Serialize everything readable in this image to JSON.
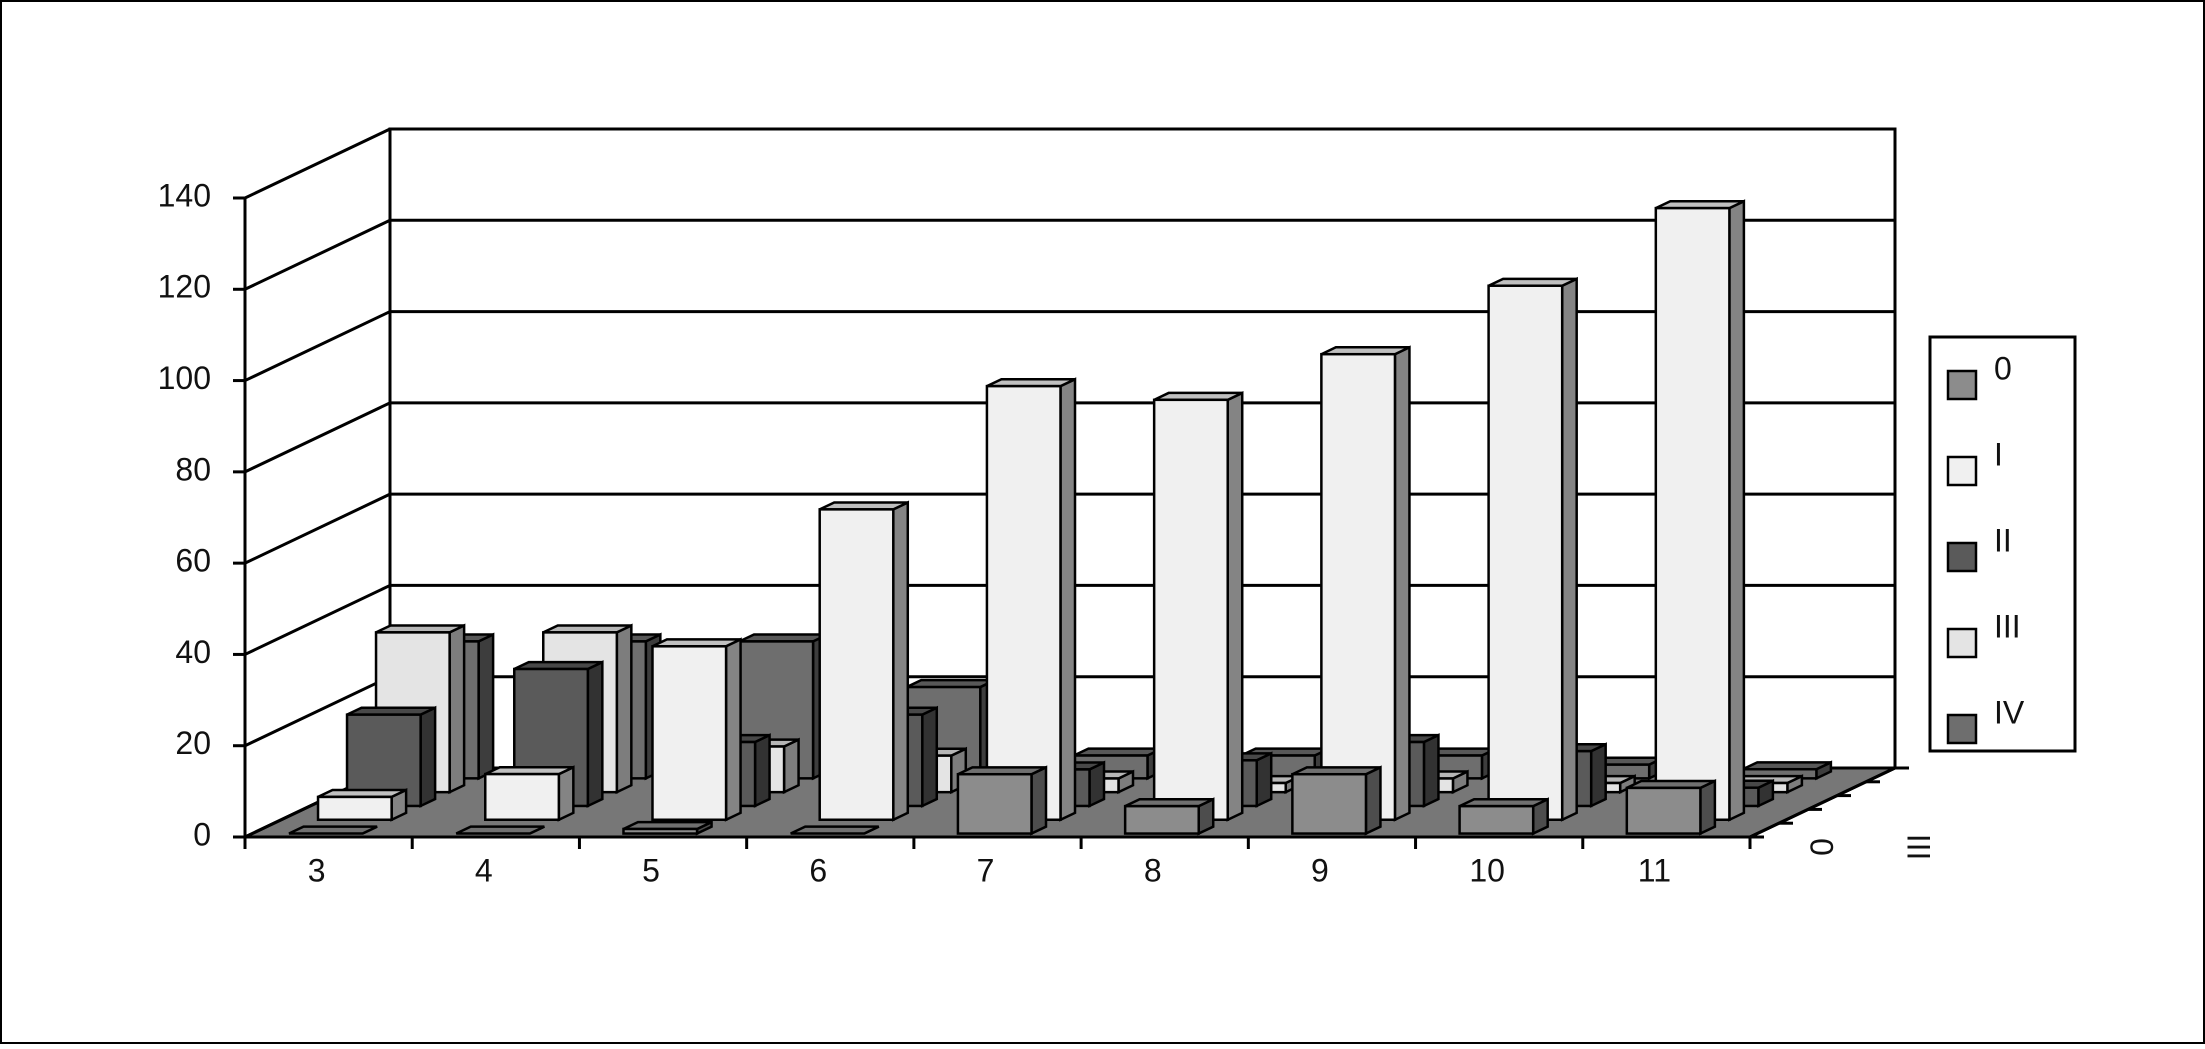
{
  "chart_data": {
    "type": "bar3d",
    "categories": [
      "3",
      "4",
      "5",
      "6",
      "7",
      "8",
      "9",
      "10",
      "11"
    ],
    "series": [
      {
        "name": "0",
        "color": "#8c8c8c",
        "values": [
          0,
          0,
          1,
          0,
          13,
          6,
          13,
          6,
          10
        ]
      },
      {
        "name": "I",
        "color": "#f0f0f0",
        "values": [
          5,
          10,
          38,
          68,
          95,
          92,
          102,
          117,
          134
        ]
      },
      {
        "name": "II",
        "color": "#5a5a5a",
        "values": [
          20,
          30,
          14,
          20,
          8,
          10,
          14,
          12,
          4
        ]
      },
      {
        "name": "III",
        "color": "#e4e4e4",
        "values": [
          35,
          35,
          10,
          8,
          3,
          2,
          3,
          2,
          2
        ]
      },
      {
        "name": "IV",
        "color": "#6e6e6e",
        "values": [
          30,
          30,
          30,
          20,
          5,
          5,
          5,
          3,
          2
        ]
      }
    ],
    "ylim": [
      0,
      140
    ],
    "yticks": [
      0,
      20,
      40,
      60,
      80,
      100,
      120,
      140
    ],
    "grid": true,
    "legend": "right"
  }
}
